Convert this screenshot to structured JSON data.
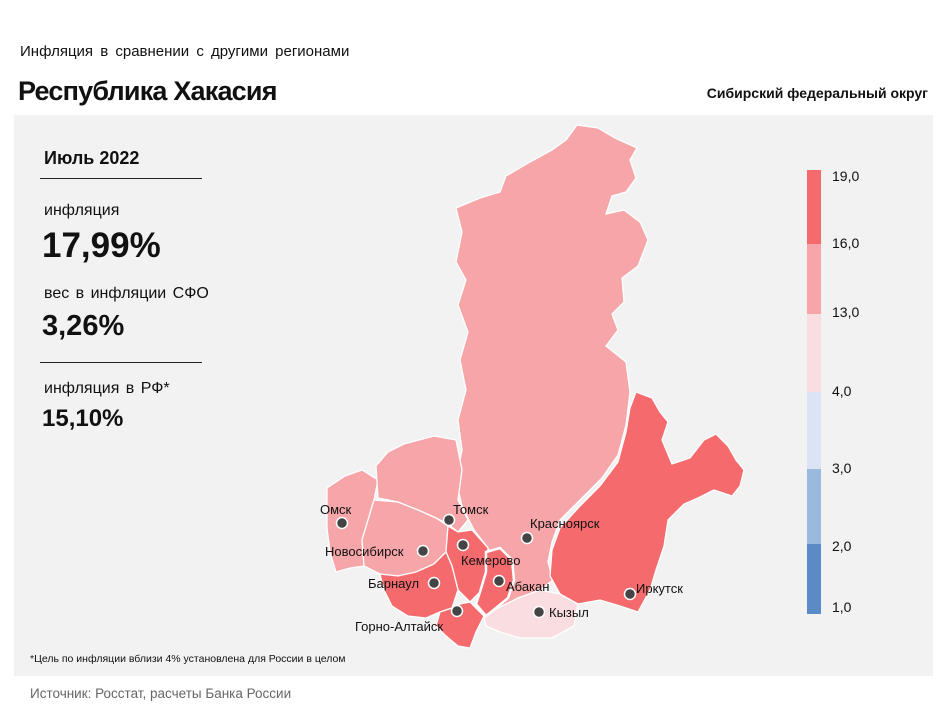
{
  "header": {
    "subtitle": "Инфляция в сравнении с другими регионами",
    "title": "Республика Хакасия",
    "district": "Сибирский федеральный округ"
  },
  "stats": {
    "period": "Июль 2022",
    "inflation_label": "инфляция",
    "inflation_value": "17,99%",
    "weight_label": "вес в инфляции СФО",
    "weight_value": "3,26%",
    "rf_label": "инфляция в РФ*",
    "rf_value": "15,10%"
  },
  "footnote": "*Цель по инфляции вблизи 4% установлена для России в целом",
  "source": "Источник: Росстат, расчеты Банка России",
  "legend": {
    "ticks": [
      "19,0",
      "16,0",
      "13,0",
      "4,0",
      "3,0",
      "2,0",
      "1,0"
    ],
    "bins": [
      {
        "range": [
          16.0,
          19.0
        ],
        "color": "#f46a6d"
      },
      {
        "range": [
          13.0,
          16.0
        ],
        "color": "#f6a5a8"
      },
      {
        "range": [
          4.0,
          13.0
        ],
        "color": "#f9dde0"
      },
      {
        "range": [
          3.0,
          4.0
        ],
        "color": "#dbe4f4"
      },
      {
        "range": [
          2.0,
          3.0
        ],
        "color": "#9bb8dd"
      },
      {
        "range": [
          1.0,
          2.0
        ],
        "color": "#5b8ac6"
      }
    ]
  },
  "cities": [
    {
      "id": "omsk",
      "name": "Омск"
    },
    {
      "id": "tomsk",
      "name": "Томск"
    },
    {
      "id": "novosibirsk",
      "name": "Новосибирск"
    },
    {
      "id": "kemerovo",
      "name": "Кемерово"
    },
    {
      "id": "krasnoyarsk",
      "name": "Красноярск"
    },
    {
      "id": "barnaul",
      "name": "Барнаул"
    },
    {
      "id": "abakan",
      "name": "Абакан"
    },
    {
      "id": "irkutsk",
      "name": "Иркутск"
    },
    {
      "id": "kyzyl",
      "name": "Кызыл"
    },
    {
      "id": "gorno-altaysk",
      "name": "Горно-Алтайск"
    }
  ],
  "region_colors": {
    "krasnoyarsk_krai": "#f6a5a8",
    "omsk_oblast": "#f6a5a8",
    "tomsk_oblast": "#f6a5a8",
    "novosibirsk_oblast": "#f6a5a8",
    "kemerovo_oblast": "#f46a6d",
    "altai_krai": "#f46a6d",
    "altai_republic": "#f46a6d",
    "khakassia": "#f46a6d",
    "tyva": "#f9dde0",
    "irkutsk_oblast": "#f46a6d"
  }
}
